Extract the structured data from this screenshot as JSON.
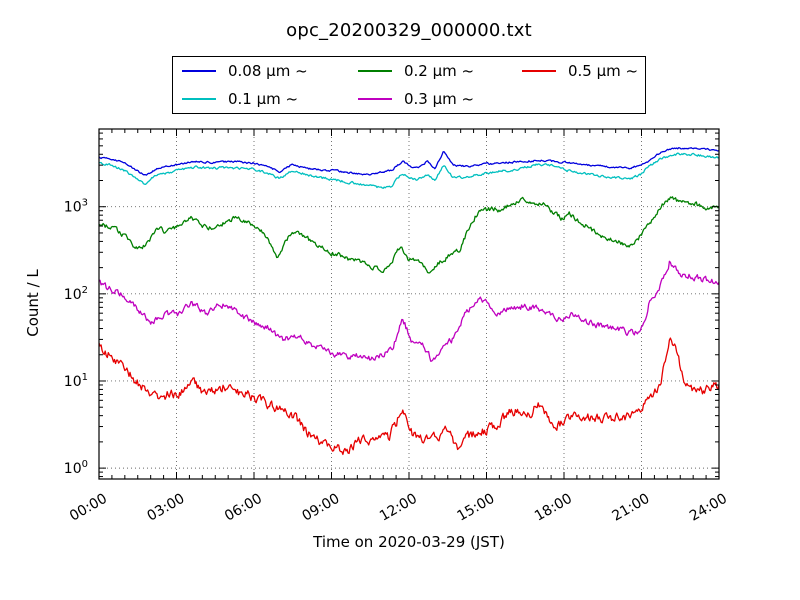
{
  "window": {
    "background": "#ffffff"
  },
  "chart_data": {
    "type": "line",
    "title": "opc_20200329_000000.txt",
    "xlabel": "Time on 2020-03-29 (JST)",
    "ylabel": "Count / L",
    "x_range": [
      0,
      24
    ],
    "x_tick_step_hours": 3,
    "x_minor_tick_hours": 0.5,
    "x_ticks": [
      "00:00",
      "03:00",
      "06:00",
      "09:00",
      "12:00",
      "15:00",
      "18:00",
      "21:00",
      "24:00"
    ],
    "y_scale": "log",
    "y_range": [
      0.75,
      7800
    ],
    "y_major_ticks": [
      1,
      10,
      100,
      1000
    ],
    "grid": "dotted",
    "grid_color": "#666666",
    "legend_position": "top-outside",
    "series": [
      {
        "name": "0.08 µm ~",
        "color": "#0000dd",
        "noise": 0.012,
        "points": [
          [
            0,
            3700
          ],
          [
            0.5,
            3500
          ],
          [
            1,
            3200
          ],
          [
            1.5,
            2550
          ],
          [
            1.8,
            2300
          ],
          [
            2.2,
            2700
          ],
          [
            3,
            3050
          ],
          [
            3.7,
            3300
          ],
          [
            4.5,
            3200
          ],
          [
            5,
            3300
          ],
          [
            5.5,
            3250
          ],
          [
            6,
            3150
          ],
          [
            6.5,
            2900
          ],
          [
            7,
            2500
          ],
          [
            7.5,
            3100
          ],
          [
            8,
            2750
          ],
          [
            9,
            2600
          ],
          [
            10,
            2400
          ],
          [
            10.5,
            2350
          ],
          [
            11,
            2500
          ],
          [
            11.3,
            2600
          ],
          [
            11.75,
            3300
          ],
          [
            12.1,
            2900
          ],
          [
            12.35,
            2850
          ],
          [
            12.7,
            3300
          ],
          [
            13,
            2750
          ],
          [
            13.35,
            4350
          ],
          [
            13.7,
            3000
          ],
          [
            14.3,
            2900
          ],
          [
            15,
            3100
          ],
          [
            16,
            3250
          ],
          [
            17,
            3400
          ],
          [
            18,
            3250
          ],
          [
            19,
            3000
          ],
          [
            20,
            2850
          ],
          [
            20.5,
            2750
          ],
          [
            21,
            3050
          ],
          [
            21.3,
            3400
          ],
          [
            21.8,
            4300
          ],
          [
            22.3,
            4700
          ],
          [
            23,
            4750
          ],
          [
            23.5,
            4550
          ],
          [
            24,
            4450
          ]
        ]
      },
      {
        "name": "0.1 µm ~",
        "color": "#00bfbf",
        "noise": 0.015,
        "points": [
          [
            0,
            3200
          ],
          [
            0.5,
            2950
          ],
          [
            1,
            2600
          ],
          [
            1.5,
            2050
          ],
          [
            1.8,
            1800
          ],
          [
            2.2,
            2300
          ],
          [
            3,
            2600
          ],
          [
            3.7,
            2850
          ],
          [
            4.5,
            2750
          ],
          [
            5,
            2800
          ],
          [
            5.5,
            2750
          ],
          [
            6,
            2700
          ],
          [
            6.5,
            2450
          ],
          [
            7,
            2100
          ],
          [
            7.5,
            2600
          ],
          [
            8,
            2350
          ],
          [
            9,
            2050
          ],
          [
            10,
            1850
          ],
          [
            10.7,
            1700
          ],
          [
            11,
            1650
          ],
          [
            11.3,
            1720
          ],
          [
            11.75,
            2450
          ],
          [
            12.1,
            2150
          ],
          [
            12.35,
            2050
          ],
          [
            12.7,
            2350
          ],
          [
            13,
            1980
          ],
          [
            13.35,
            3050
          ],
          [
            13.7,
            2130
          ],
          [
            14.3,
            2220
          ],
          [
            15,
            2450
          ],
          [
            16,
            2650
          ],
          [
            17,
            3050
          ],
          [
            17.5,
            2950
          ],
          [
            18,
            2650
          ],
          [
            19,
            2350
          ],
          [
            20,
            2150
          ],
          [
            20.6,
            2100
          ],
          [
            21,
            2400
          ],
          [
            21.3,
            2900
          ],
          [
            21.8,
            3650
          ],
          [
            22.3,
            4000
          ],
          [
            23,
            4000
          ],
          [
            23.5,
            3800
          ],
          [
            24,
            3650
          ]
        ]
      },
      {
        "name": "0.2 µm ~",
        "color": "#007f00",
        "noise": 0.03,
        "points": [
          [
            0,
            650
          ],
          [
            0.5,
            560
          ],
          [
            0.8,
            520
          ],
          [
            1.2,
            400
          ],
          [
            1.5,
            320
          ],
          [
            1.8,
            360
          ],
          [
            2.3,
            560
          ],
          [
            2.6,
            520
          ],
          [
            3,
            590
          ],
          [
            3.3,
            650
          ],
          [
            3.6,
            750
          ],
          [
            3.9,
            640
          ],
          [
            4.2,
            560
          ],
          [
            4.6,
            620
          ],
          [
            5,
            680
          ],
          [
            5.3,
            760
          ],
          [
            5.6,
            700
          ],
          [
            6,
            620
          ],
          [
            6.5,
            450
          ],
          [
            6.9,
            265
          ],
          [
            7.3,
            440
          ],
          [
            7.7,
            540
          ],
          [
            8,
            430
          ],
          [
            8.3,
            400
          ],
          [
            9,
            300
          ],
          [
            9.5,
            260
          ],
          [
            10,
            235
          ],
          [
            10.6,
            200
          ],
          [
            11,
            190
          ],
          [
            11.5,
            280
          ],
          [
            11.7,
            365
          ],
          [
            12,
            240
          ],
          [
            12.3,
            250
          ],
          [
            12.8,
            175
          ],
          [
            13.2,
            230
          ],
          [
            13.6,
            280
          ],
          [
            14,
            330
          ],
          [
            14.3,
            560
          ],
          [
            14.6,
            800
          ],
          [
            14.9,
            920
          ],
          [
            15.3,
            950
          ],
          [
            15.6,
            900
          ],
          [
            16,
            1100
          ],
          [
            16.4,
            1200
          ],
          [
            16.8,
            1150
          ],
          [
            17.2,
            1050
          ],
          [
            17.6,
            840
          ],
          [
            17.9,
            740
          ],
          [
            18.2,
            820
          ],
          [
            18.6,
            680
          ],
          [
            19,
            560
          ],
          [
            19.5,
            440
          ],
          [
            20,
            400
          ],
          [
            20.6,
            350
          ],
          [
            21,
            470
          ],
          [
            21.4,
            700
          ],
          [
            21.9,
            1140
          ],
          [
            22.1,
            1250
          ],
          [
            22.6,
            1100
          ],
          [
            23.1,
            1060
          ],
          [
            23.6,
            960
          ],
          [
            24,
            1000
          ]
        ]
      },
      {
        "name": "0.3 µm ~",
        "color": "#bf00bf",
        "noise": 0.04,
        "points": [
          [
            0,
            134
          ],
          [
            0.5,
            110
          ],
          [
            1,
            95
          ],
          [
            1.5,
            65
          ],
          [
            2,
            46
          ],
          [
            2.6,
            61
          ],
          [
            3,
            57
          ],
          [
            3.6,
            79
          ],
          [
            4.1,
            60
          ],
          [
            4.6,
            72
          ],
          [
            4.9,
            76
          ],
          [
            5.4,
            60
          ],
          [
            6,
            47
          ],
          [
            6.6,
            41
          ],
          [
            7.1,
            29
          ],
          [
            7.7,
            34
          ],
          [
            8.1,
            26
          ],
          [
            8.6,
            23
          ],
          [
            9.3,
            20
          ],
          [
            10,
            19
          ],
          [
            10.6,
            18
          ],
          [
            11,
            21
          ],
          [
            11.4,
            26
          ],
          [
            11.75,
            53
          ],
          [
            12.1,
            28
          ],
          [
            12.6,
            25
          ],
          [
            12.9,
            17
          ],
          [
            13.3,
            26
          ],
          [
            13.7,
            30
          ],
          [
            14.1,
            55
          ],
          [
            14.5,
            80
          ],
          [
            14.7,
            86
          ],
          [
            15,
            78
          ],
          [
            15.3,
            56
          ],
          [
            15.6,
            62
          ],
          [
            16,
            70
          ],
          [
            16.5,
            73
          ],
          [
            17,
            68
          ],
          [
            17.3,
            62
          ],
          [
            17.6,
            56
          ],
          [
            17.9,
            49
          ],
          [
            18.2,
            58
          ],
          [
            18.6,
            53
          ],
          [
            19,
            47
          ],
          [
            19.5,
            43
          ],
          [
            20.2,
            39
          ],
          [
            20.5,
            36
          ],
          [
            20.9,
            38
          ],
          [
            21.1,
            45
          ],
          [
            21.3,
            82
          ],
          [
            21.6,
            110
          ],
          [
            21.9,
            160
          ],
          [
            22.1,
            240
          ],
          [
            22.4,
            180
          ],
          [
            22.7,
            165
          ],
          [
            23,
            158
          ],
          [
            23.3,
            150
          ],
          [
            23.7,
            140
          ],
          [
            24,
            134
          ]
        ]
      },
      {
        "name": "0.5 µm ~",
        "color": "#e60000",
        "noise": 0.06,
        "points": [
          [
            0,
            26
          ],
          [
            0.4,
            20
          ],
          [
            0.9,
            16
          ],
          [
            1.4,
            10
          ],
          [
            1.9,
            7.3
          ],
          [
            2.2,
            6.5
          ],
          [
            2.6,
            7
          ],
          [
            3,
            7
          ],
          [
            3.4,
            8
          ],
          [
            3.7,
            9.5
          ],
          [
            4,
            7.2
          ],
          [
            4.5,
            7.8
          ],
          [
            4.9,
            8.8
          ],
          [
            5.3,
            7.6
          ],
          [
            5.8,
            6.8
          ],
          [
            6.1,
            6.4
          ],
          [
            6.6,
            5.4
          ],
          [
            7.1,
            4.4
          ],
          [
            7.6,
            3.8
          ],
          [
            8,
            2.6
          ],
          [
            8.4,
            2.1
          ],
          [
            9,
            1.9
          ],
          [
            9.5,
            1.5
          ],
          [
            10,
            2
          ],
          [
            10.7,
            2.1
          ],
          [
            11.2,
            2.2
          ],
          [
            11.5,
            3.2
          ],
          [
            11.75,
            5.2
          ],
          [
            12.1,
            2.6
          ],
          [
            12.6,
            2.2
          ],
          [
            13.1,
            2.3
          ],
          [
            13.45,
            3
          ],
          [
            13.9,
            1.6
          ],
          [
            14.3,
            2.3
          ],
          [
            14.8,
            2.6
          ],
          [
            15.1,
            2.8
          ],
          [
            15.5,
            3.3
          ],
          [
            15.9,
            4.3
          ],
          [
            16.3,
            4.5
          ],
          [
            16.7,
            4.4
          ],
          [
            17,
            5.3
          ],
          [
            17.4,
            3.9
          ],
          [
            17.7,
            2.9
          ],
          [
            18.1,
            3.6
          ],
          [
            18.4,
            4
          ],
          [
            19,
            3.9
          ],
          [
            19.5,
            3.7
          ],
          [
            20,
            3.9
          ],
          [
            20.5,
            3.8
          ],
          [
            20.9,
            4.2
          ],
          [
            21.1,
            5.9
          ],
          [
            21.35,
            7.1
          ],
          [
            21.6,
            7.5
          ],
          [
            21.75,
            10
          ],
          [
            21.95,
            21
          ],
          [
            22.1,
            31
          ],
          [
            22.25,
            27
          ],
          [
            22.45,
            17
          ],
          [
            22.65,
            9.6
          ],
          [
            22.9,
            7.7
          ],
          [
            23.2,
            7.4
          ],
          [
            23.5,
            8
          ],
          [
            23.7,
            9.2
          ],
          [
            24,
            8.8
          ]
        ]
      }
    ]
  }
}
